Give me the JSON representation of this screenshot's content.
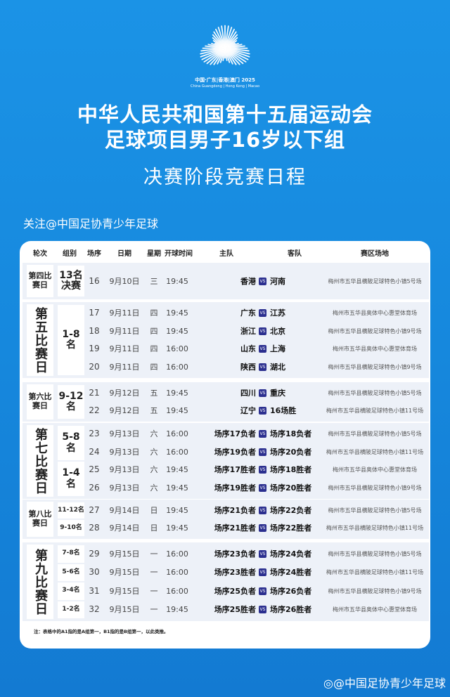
{
  "logo": {
    "name": "logo-fan-rays",
    "text_cn": "中国·广东|香港|澳门 2025",
    "text_en": "China Guangdong | Hong Kong | Macao"
  },
  "title": {
    "line1": "中华人民共和国第十五届运动会",
    "line2": "足球项目男子16岁以下组",
    "line3": "决赛阶段竞赛日程"
  },
  "follow": "关注@中国足协青少年足球",
  "headers": [
    "轮次",
    "组别",
    "场序",
    "日期",
    "星期",
    "开球时间",
    "主队",
    "客队",
    "赛区场地"
  ],
  "vs_label": "VS",
  "blocks": [
    {
      "round": "第四比赛日",
      "round_style": "small",
      "groups": [
        {
          "label": "13名决赛",
          "rows": 1
        }
      ],
      "rows": [
        {
          "seq": "16",
          "date": "9月10日",
          "weekday": "三",
          "time": "19:45",
          "home": "香港",
          "away": "河南",
          "venue": "梅州市五华县横陂足球特色小镇5号场"
        }
      ]
    },
    {
      "round": "第五比赛日",
      "round_style": "big",
      "groups": [
        {
          "label": "1-8名",
          "rows": 4
        }
      ],
      "rows": [
        {
          "seq": "17",
          "date": "9月11日",
          "weekday": "四",
          "time": "19:45",
          "home": "广东",
          "away": "江苏",
          "venue": "梅州市五华县奥体中心惠堂体育场"
        },
        {
          "seq": "18",
          "date": "9月11日",
          "weekday": "四",
          "time": "19:45",
          "home": "浙江",
          "away": "北京",
          "venue": "梅州市五华县横陂足球特色小镇9号场"
        },
        {
          "seq": "19",
          "date": "9月11日",
          "weekday": "四",
          "time": "16:00",
          "home": "山东",
          "away": "上海",
          "venue": "梅州市五华县奥体中心惠堂体育场"
        },
        {
          "seq": "20",
          "date": "9月11日",
          "weekday": "四",
          "time": "16:00",
          "home": "陕西",
          "away": "湖北",
          "venue": "梅州市五华县横陂足球特色小镇9号场"
        }
      ]
    },
    {
      "round": "第六比赛日",
      "round_style": "small",
      "groups": [
        {
          "label": "9-12名",
          "rows": 2
        }
      ],
      "rows": [
        {
          "seq": "21",
          "date": "9月12日",
          "weekday": "五",
          "time": "19:45",
          "home": "四川",
          "away": "重庆",
          "venue": "梅州市五华县横陂足球特色小镇5号场"
        },
        {
          "seq": "22",
          "date": "9月12日",
          "weekday": "五",
          "time": "19:45",
          "home": "辽宁",
          "away": "16场胜",
          "venue": "梅州市五华县横陂足球特色小镇11号场"
        }
      ]
    },
    {
      "round": "第七比赛日",
      "round_style": "big",
      "groups": [
        {
          "label": "5-8名",
          "rows": 2
        },
        {
          "label": "1-4名",
          "rows": 2
        }
      ],
      "rows": [
        {
          "seq": "23",
          "date": "9月13日",
          "weekday": "六",
          "time": "16:00",
          "home": "场序17负者",
          "away": "场序18负者",
          "venue": "梅州市五华县横陂足球特色小镇5号场"
        },
        {
          "seq": "24",
          "date": "9月13日",
          "weekday": "六",
          "time": "16:00",
          "home": "场序19负者",
          "away": "场序20负者",
          "venue": "梅州市五华县横陂足球特色小镇11号场"
        },
        {
          "seq": "25",
          "date": "9月13日",
          "weekday": "六",
          "time": "19:45",
          "home": "场序17胜者",
          "away": "场序18胜者",
          "venue": "梅州市五华县奥体中心惠堂体育场"
        },
        {
          "seq": "26",
          "date": "9月13日",
          "weekday": "六",
          "time": "19:45",
          "home": "场序19胜者",
          "away": "场序20胜者",
          "venue": "梅州市五华县横陂足球特色小镇9号场"
        }
      ]
    },
    {
      "round": "第八比赛日",
      "round_style": "small",
      "groups": [
        {
          "label": "11-12名",
          "rows": 1,
          "small": true
        },
        {
          "label": "9-10名",
          "rows": 1,
          "small": true
        }
      ],
      "rows": [
        {
          "seq": "27",
          "date": "9月14日",
          "weekday": "日",
          "time": "19:45",
          "home": "场序21负者",
          "away": "场序22负者",
          "venue": "梅州市五华县横陂足球特色小镇5号场"
        },
        {
          "seq": "28",
          "date": "9月14日",
          "weekday": "日",
          "time": "19:45",
          "home": "场序21胜者",
          "away": "场序22胜者",
          "venue": "梅州市五华县横陂足球特色小镇11号场"
        }
      ]
    },
    {
      "round": "第九比赛日",
      "round_style": "big",
      "groups": [
        {
          "label": "7-8名",
          "rows": 1,
          "small": true
        },
        {
          "label": "5-6名",
          "rows": 1,
          "small": true
        },
        {
          "label": "3-4名",
          "rows": 1,
          "small": true
        },
        {
          "label": "1-2名",
          "rows": 1,
          "small": true
        }
      ],
      "rows": [
        {
          "seq": "29",
          "date": "9月15日",
          "weekday": "一",
          "time": "16:00",
          "home": "场序23负者",
          "away": "场序24负者",
          "venue": "梅州市五华县横陂足球特色小镇5号场"
        },
        {
          "seq": "30",
          "date": "9月15日",
          "weekday": "一",
          "time": "16:00",
          "home": "场序23胜者",
          "away": "场序24胜者",
          "venue": "梅州市五华县横陂足球特色小镇11号场"
        },
        {
          "seq": "31",
          "date": "9月15日",
          "weekday": "一",
          "time": "16:00",
          "home": "场序25负者",
          "away": "场序26负者",
          "venue": "梅州市五华县横陂足球特色小镇9号场"
        },
        {
          "seq": "32",
          "date": "9月15日",
          "weekday": "一",
          "time": "19:45",
          "home": "场序25胜者",
          "away": "场序26胜者",
          "venue": "梅州市五华县奥体中心惠堂体育场"
        }
      ]
    }
  ],
  "note": "注：表格中的A1指的是A组第一，B1指的是B组第一，以此类推。",
  "watermark": "@中国足协青少年足球",
  "colors": {
    "background": "#1688dd",
    "vs_badge": "#2b2f8f",
    "block_bg": "#edf1f8"
  }
}
